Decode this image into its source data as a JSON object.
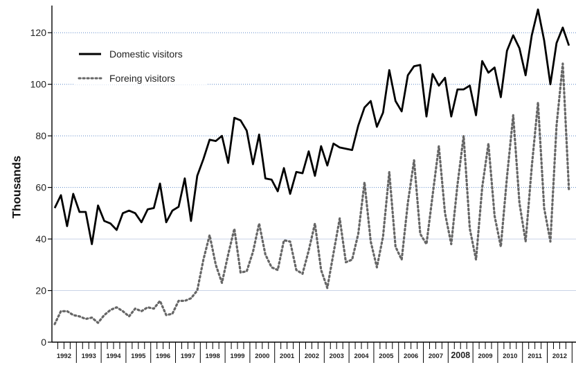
{
  "chart_data": {
    "type": "line",
    "title": "",
    "xlabel": "",
    "ylabel": "Thousands",
    "ylim": [
      0,
      130
    ],
    "yticks": [
      0,
      20,
      40,
      60,
      80,
      100,
      120
    ],
    "grid": "horizontal dotted at 20 and above",
    "legend_position": "top-left",
    "x_unit": "quarter",
    "start": "1992 Q1",
    "years": [
      "1992",
      "1993",
      "1994",
      "1995",
      "1996",
      "1997",
      "1998",
      "1999",
      "2000",
      "2001",
      "2002",
      "2003",
      "2004",
      "2005",
      "2006",
      "2007",
      "2008",
      "2009",
      "2010",
      "2011",
      "2012"
    ],
    "series": [
      {
        "name": "Domestic visitors",
        "style": "solid",
        "color": "#000000",
        "values": [
          52,
          57,
          45,
          57.5,
          50.5,
          50.5,
          38,
          53,
          47,
          46,
          43.5,
          50,
          51,
          50,
          46.5,
          51.5,
          52,
          61.5,
          46.5,
          51,
          52.5,
          63.5,
          47,
          64.5,
          71,
          78.5,
          78,
          80,
          69.5,
          87,
          86,
          82,
          69,
          80.5,
          63.5,
          63,
          58.5,
          67.5,
          57.5,
          66,
          65.5,
          74,
          64.5,
          76,
          68.5,
          77,
          75.5,
          75,
          74.5,
          84,
          91,
          93.5,
          83.5,
          89,
          105.5,
          93.5,
          89.5,
          103.5,
          107,
          107.5,
          87.5,
          104,
          99.5,
          102.5,
          87.5,
          98,
          98,
          99.5,
          88,
          109,
          104.5,
          106.5,
          95,
          113,
          119,
          114,
          103.5,
          119,
          129,
          117,
          100,
          116,
          122,
          115
        ]
      },
      {
        "name": "Foreing visitors",
        "style": "dotted",
        "color": "#666666",
        "values": [
          7,
          12,
          12,
          10.5,
          10,
          9,
          9.5,
          7.5,
          10.5,
          12.5,
          13.5,
          12,
          10,
          13,
          12,
          13.5,
          13,
          16,
          10.5,
          11,
          16,
          16,
          17,
          20,
          32,
          41.5,
          30,
          23,
          34,
          44,
          27,
          27.5,
          35,
          46,
          34,
          29,
          28,
          39.5,
          39,
          28,
          26.5,
          35.5,
          46,
          28,
          21,
          34.5,
          48,
          31,
          32,
          42,
          62,
          39,
          29,
          41,
          66,
          37,
          32,
          54,
          70.5,
          42,
          38,
          57,
          76,
          50,
          38,
          61,
          80,
          44,
          32,
          60,
          77,
          49,
          37,
          64,
          88,
          54,
          39,
          68,
          93,
          52,
          39,
          84,
          108,
          59
        ]
      }
    ]
  }
}
